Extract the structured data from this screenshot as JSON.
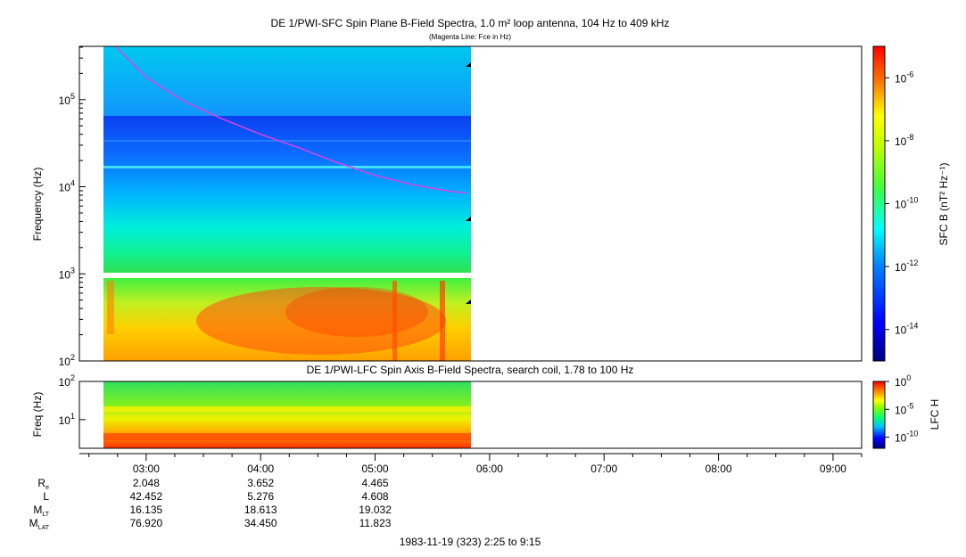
{
  "upper_panel": {
    "title": "DE 1/PWI-SFC  Spin Plane B-Field Spectra, 1.0 m² loop antenna, 104 Hz to 409 kHz",
    "subtitle": "(Magenta Line: Fce in Hz)",
    "ylabel": "Frequency (Hz)",
    "colorbar_label": "SFC B (nT² Hz⁻¹)"
  },
  "lower_panel": {
    "title": "DE 1/PWI-LFC  Spin Axis B-Field Spectra, search coil, 1.78 to 100 Hz",
    "ylabel": "Freq (Hz)",
    "colorbar_label": "LFC H"
  },
  "footer": {
    "date_label": "1983-11-19 (323) 2:25 to 9:15"
  },
  "ephemeris": {
    "rows": [
      {
        "label": "R",
        "sub": "e",
        "values": [
          "2.048",
          "3.652",
          "4.465"
        ]
      },
      {
        "label": "L",
        "sub": "",
        "values": [
          "42.452",
          "5.276",
          "4.608"
        ]
      },
      {
        "label": "M",
        "sub": "LT",
        "values": [
          "16.135",
          "18.613",
          "19.032"
        ]
      },
      {
        "label": "M",
        "sub": "LAT",
        "values": [
          "76.920",
          "34.450",
          "11.823"
        ]
      }
    ]
  },
  "colors": {
    "fce_line": "#e040e0",
    "fill_value": "#ffffff"
  },
  "chart_data": [
    {
      "type": "heatmap",
      "panel": "upper",
      "title": "DE 1/PWI-SFC  Spin Plane B-Field Spectra, 1.0 m² loop antenna, 104 Hz to 409 kHz",
      "subtitle": "(Magenta Line: Fce in Hz)",
      "xlabel": "",
      "ylabel": "Frequency (Hz)",
      "y_scale": "log",
      "ylim": [
        100,
        409000
      ],
      "y_ticks": [
        {
          "value": 100,
          "label": "10",
          "exp": "2"
        },
        {
          "value": 1000,
          "label": "10",
          "exp": "3"
        },
        {
          "value": 10000,
          "label": "10",
          "exp": "4"
        },
        {
          "value": 100000,
          "label": "10",
          "exp": "5"
        }
      ],
      "xlim": [
        "02:25",
        "09:15"
      ],
      "data_span": [
        "02:35",
        "05:50"
      ],
      "colorbar": {
        "label": "SFC B (nT² Hz⁻¹)",
        "scale": "log",
        "range": [
          1e-15,
          1e-05
        ],
        "ticks": [
          {
            "value": 1e-06,
            "label": "10",
            "exp": "-6"
          },
          {
            "value": 1e-08,
            "label": "10",
            "exp": "-8"
          },
          {
            "value": 1e-10,
            "label": "10",
            "exp": "-10"
          },
          {
            "value": 1e-12,
            "label": "10",
            "exp": "-12"
          },
          {
            "value": 1e-14,
            "label": "10",
            "exp": "-14"
          }
        ]
      },
      "fce_line": {
        "name": "Fce",
        "times": [
          "02:44",
          "03:00",
          "03:20",
          "03:40",
          "04:00",
          "04:20",
          "04:40",
          "05:00",
          "05:20",
          "05:40",
          "05:48"
        ],
        "freq_hz": [
          409000,
          180000,
          95000,
          60000,
          40000,
          28000,
          19000,
          13500,
          10500,
          8800,
          8500
        ]
      }
    },
    {
      "type": "heatmap",
      "panel": "lower",
      "title": "DE 1/PWI-LFC  Spin Axis B-Field Spectra, search coil, 1.78 to 100 Hz",
      "ylabel": "Freq (Hz)",
      "y_scale": "log",
      "ylim": [
        1.78,
        100
      ],
      "y_ticks": [
        {
          "value": 10,
          "label": "10",
          "exp": "1"
        },
        {
          "value": 100,
          "label": "10",
          "exp": "2"
        }
      ],
      "xlim": [
        "02:25",
        "09:15"
      ],
      "data_span": [
        "02:35",
        "05:50"
      ],
      "colorbar": {
        "label": "LFC H",
        "scale": "log",
        "range": [
          1e-12,
          1
        ],
        "ticks": [
          {
            "value": 1,
            "label": "10",
            "exp": "0"
          },
          {
            "value": 1e-05,
            "label": "10",
            "exp": "-5"
          },
          {
            "value": 1e-10,
            "label": "10",
            "exp": "-10"
          }
        ]
      }
    }
  ],
  "time_axis": {
    "start": "02:25",
    "end": "09:15",
    "ticks": [
      "03:00",
      "04:00",
      "05:00",
      "06:00",
      "07:00",
      "08:00",
      "09:00"
    ]
  }
}
